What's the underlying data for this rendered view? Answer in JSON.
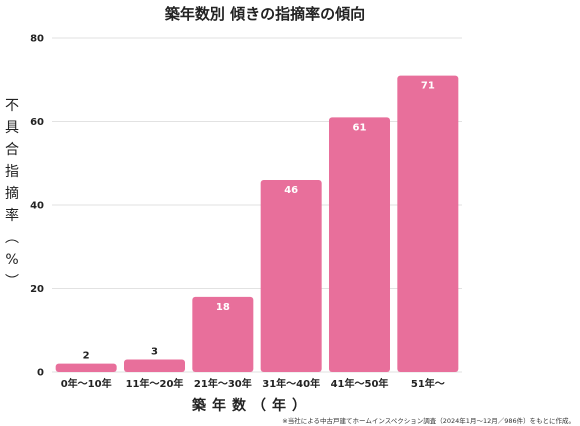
{
  "chart_data": {
    "type": "bar",
    "title": "築年数別 傾きの指摘率の傾向",
    "xlabel": "築年数（年）",
    "ylabel": "不具合指摘率（%）",
    "categories": [
      "0年～10年",
      "11年～20年",
      "21年～30年",
      "31年～40年",
      "41年～50年",
      "51年～"
    ],
    "values": [
      2,
      3,
      18,
      46,
      61,
      71
    ],
    "ylim": [
      0,
      80
    ],
    "yticks": [
      0,
      20,
      40,
      60,
      80
    ],
    "grid": true,
    "legend": "none",
    "bar_color": "#e86f9b",
    "note": "※当社による中古戸建てホームインスペクション調査（2024年1月～12月／986件）をもとに作成。"
  }
}
